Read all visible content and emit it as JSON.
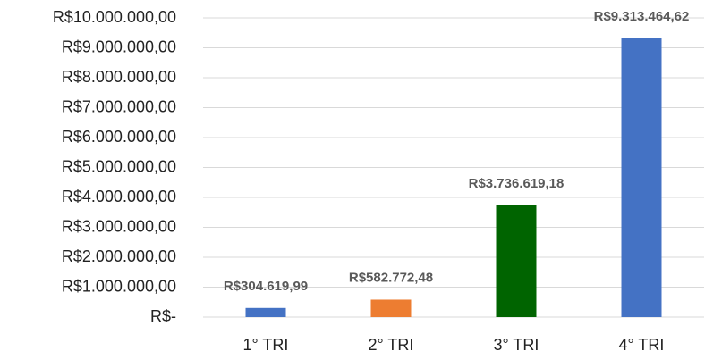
{
  "chart_data": {
    "type": "bar",
    "categories": [
      "1° TRI",
      "2° TRI",
      "3° TRI",
      "4° TRI"
    ],
    "values": [
      304619.99,
      582772.48,
      3736619.18,
      9313464.62
    ],
    "value_labels": [
      "R$304.619,99",
      "R$582.772,48",
      "R$3.736.619,18",
      "R$9.313.464,62"
    ],
    "colors": [
      "#4472c4",
      "#ed7d31",
      "#006400",
      "#4472c4"
    ],
    "ylim": [
      0,
      10000000
    ],
    "yticks": [
      {
        "value": 0,
        "label": "R$-"
      },
      {
        "value": 1000000,
        "label": "R$1.000.000,00"
      },
      {
        "value": 2000000,
        "label": "R$2.000.000,00"
      },
      {
        "value": 3000000,
        "label": "R$3.000.000,00"
      },
      {
        "value": 4000000,
        "label": "R$4.000.000,00"
      },
      {
        "value": 5000000,
        "label": "R$5.000.000,00"
      },
      {
        "value": 6000000,
        "label": "R$6.000.000,00"
      },
      {
        "value": 7000000,
        "label": "R$7.000.000,00"
      },
      {
        "value": 8000000,
        "label": "R$8.000.000,00"
      },
      {
        "value": 9000000,
        "label": "R$9.000.000,00"
      },
      {
        "value": 10000000,
        "label": "R$10.000.000,00"
      }
    ],
    "grid": true
  }
}
